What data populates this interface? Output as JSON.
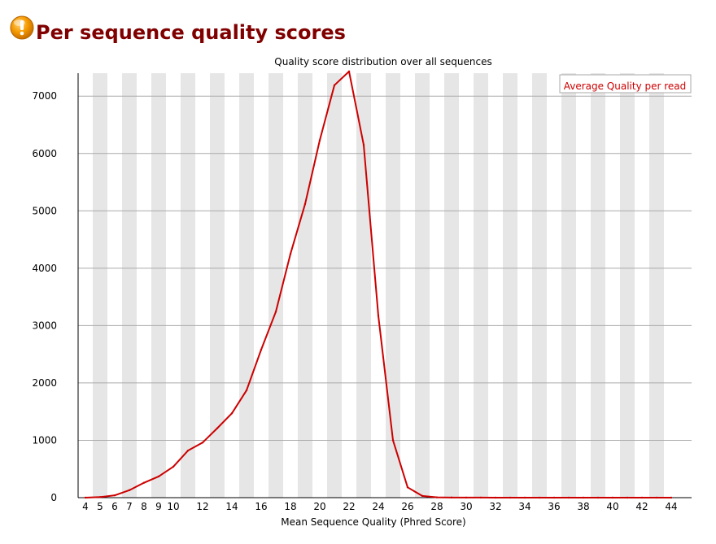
{
  "page": {
    "title": "Per sequence quality scores",
    "status_icon": "warning-icon",
    "status_color": "#F59A00"
  },
  "chart_data": {
    "type": "line",
    "title": "Quality score distribution over all sequences",
    "xlabel": "Mean Sequence Quality (Phred Score)",
    "ylabel": "",
    "xlim": [
      4,
      44
    ],
    "ylim": [
      0,
      7400
    ],
    "x_ticks": [
      "4",
      "5",
      "6",
      "7",
      "8",
      "9",
      "10",
      "12",
      "14",
      "16",
      "18",
      "20",
      "22",
      "24",
      "26",
      "28",
      "30",
      "32",
      "34",
      "36",
      "38",
      "40",
      "42",
      "44"
    ],
    "y_ticks": [
      0,
      1000,
      2000,
      3000,
      4000,
      5000,
      6000,
      7000
    ],
    "grid": "horizontal",
    "band_color": "#e6e6e6",
    "line_color": "#cc0000",
    "legend": {
      "placement": "top-right",
      "entries": [
        "Average Quality per read"
      ]
    },
    "series": [
      {
        "name": "Average Quality per read",
        "x": [
          4,
          5,
          6,
          7,
          8,
          9,
          10,
          11,
          12,
          13,
          14,
          15,
          16,
          17,
          18,
          19,
          20,
          21,
          22,
          23,
          24,
          25,
          26,
          27,
          28,
          29,
          30,
          31,
          32,
          33,
          34,
          35,
          36,
          37,
          38,
          39,
          40,
          41,
          42,
          43,
          44
        ],
        "values": [
          0,
          10,
          40,
          130,
          260,
          370,
          540,
          820,
          960,
          1210,
          1470,
          1870,
          2580,
          3240,
          4250,
          5120,
          6230,
          7190,
          7430,
          6150,
          3170,
          1000,
          180,
          30,
          5,
          2,
          1,
          1,
          0,
          0,
          0,
          0,
          0,
          0,
          0,
          0,
          0,
          0,
          0,
          0,
          0
        ]
      }
    ]
  }
}
